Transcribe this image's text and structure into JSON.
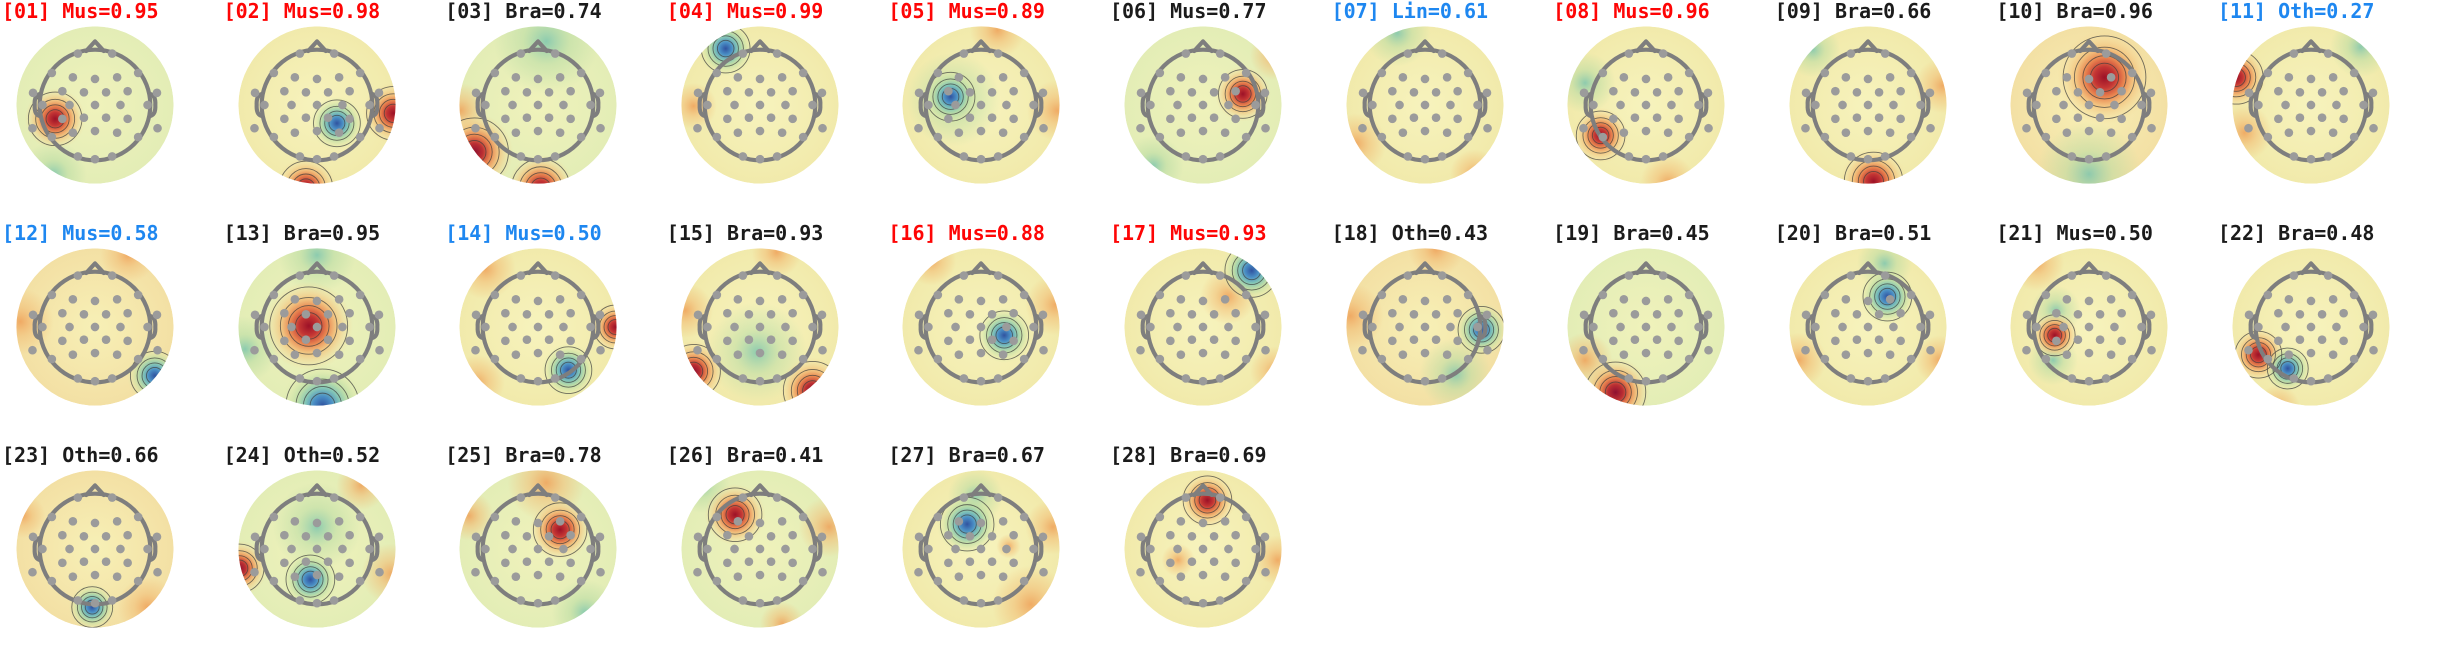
{
  "figure": {
    "name": "EEG ICA component topomap grid",
    "background": "#ffffff",
    "columns": 11,
    "rows": 3,
    "title_colors": {
      "red": "#fe0505",
      "blue": "#1e87f0",
      "black": "#1b1b1b"
    }
  },
  "chart_data": {
    "type": "heatmap",
    "subtype": "eeg-ica-component-topomaps",
    "colormap": "red=positive, yellow=neutral, blue/teal=negative",
    "head_outline_color": "#7e7e7e",
    "electrode_dot_color": "#9b9b9b",
    "contour_color": "#3b3b3b",
    "base_palettes": {
      "yellow": [
        "#f7f3bd",
        "#f1eaab"
      ],
      "green": [
        "#f0f2bb",
        "#e3edb6"
      ],
      "warm": [
        "#f7f0b6",
        "#f3e0a4"
      ]
    },
    "electrodes": [
      [
        -0.31,
        0.93
      ],
      [
        0.31,
        0.93
      ],
      [
        -0.78,
        0.58
      ],
      [
        -0.4,
        0.5
      ],
      [
        0,
        0.47
      ],
      [
        0.4,
        0.5
      ],
      [
        0.78,
        0.58
      ],
      [
        -1.12,
        0.22
      ],
      [
        1.12,
        0.22
      ],
      [
        -0.59,
        0.25
      ],
      [
        -0.2,
        0.23
      ],
      [
        0.2,
        0.23
      ],
      [
        0.59,
        0.25
      ],
      [
        -0.95,
        0
      ],
      [
        -0.46,
        0
      ],
      [
        0,
        0
      ],
      [
        0.46,
        0
      ],
      [
        0.95,
        0
      ],
      [
        -1.13,
        -0.42
      ],
      [
        1.13,
        -0.42
      ],
      [
        -0.59,
        -0.25
      ],
      [
        -0.2,
        -0.23
      ],
      [
        0.2,
        -0.23
      ],
      [
        0.59,
        -0.25
      ],
      [
        -0.78,
        -0.58
      ],
      [
        -0.4,
        -0.5
      ],
      [
        0,
        -0.47
      ],
      [
        0.4,
        -0.5
      ],
      [
        0.78,
        -0.58
      ],
      [
        -0.31,
        -0.93
      ],
      [
        0,
        -0.98
      ],
      [
        0.31,
        -0.93
      ]
    ],
    "components": [
      {
        "num": "01",
        "cls": "Mus",
        "prob": "0.95",
        "title": "[01] Mus=0.95",
        "label_color": "red",
        "base": "green",
        "blobs": [
          [
            "red",
            -0.72,
            -0.25,
            0.55
          ],
          [
            "teal",
            -0.75,
            -1.25,
            0.6
          ]
        ]
      },
      {
        "num": "02",
        "cls": "Mus",
        "prob": "0.98",
        "title": "[02] Mus=0.98",
        "label_color": "red",
        "base": "yellow",
        "blobs": [
          [
            "blue",
            0.36,
            -0.33,
            0.48
          ],
          [
            "red",
            1.38,
            -0.15,
            0.55
          ],
          [
            "red",
            -0.2,
            -1.5,
            0.55
          ]
        ]
      },
      {
        "num": "03",
        "cls": "Bra",
        "prob": "0.74",
        "title": "[03] Bra=0.74",
        "label_color": "black",
        "base": "green",
        "blobs": [
          [
            "teal",
            0.15,
            1.15,
            0.95
          ],
          [
            "crimson",
            -1.15,
            -0.85,
            0.7
          ],
          [
            "red",
            0.05,
            -1.5,
            0.6
          ],
          [
            "orange",
            -1.4,
            -0.1,
            0.5
          ]
        ]
      },
      {
        "num": "04",
        "cls": "Mus",
        "prob": "0.99",
        "title": "[04] Mus=0.99",
        "label_color": "red",
        "base": "yellow",
        "blobs": [
          [
            "blue",
            -0.62,
            1.02,
            0.5
          ],
          [
            "orange",
            -1.2,
            -0.02,
            0.42
          ]
        ]
      },
      {
        "num": "05",
        "cls": "Mus",
        "prob": "0.89",
        "title": "[05] Mus=0.89",
        "label_color": "red",
        "base": "yellow",
        "blobs": [
          [
            "teal",
            -0.5,
            0.1,
            0.85
          ],
          [
            "blue",
            -0.55,
            0.15,
            0.5
          ],
          [
            "orange",
            1.38,
            -0.1,
            0.55
          ],
          [
            "orange",
            0.3,
            1.35,
            0.5
          ]
        ]
      },
      {
        "num": "06",
        "cls": "Mus",
        "prob": "0.77",
        "title": "[06] Mus=0.77",
        "label_color": "black",
        "base": "green",
        "blobs": [
          [
            "red",
            0.72,
            0.2,
            0.5
          ],
          [
            "orange",
            1.3,
            0.9,
            0.45
          ],
          [
            "teal",
            -0.9,
            -1.1,
            0.55
          ]
        ]
      },
      {
        "num": "07",
        "cls": "Lin",
        "prob": "0.61",
        "title": "[07] Lin=0.61",
        "label_color": "blue",
        "base": "yellow",
        "blobs": [
          [
            "teal",
            -0.5,
            1.3,
            0.6
          ],
          [
            "orange",
            -1.25,
            -0.7,
            0.55
          ],
          [
            "orange",
            0.9,
            -1.25,
            0.45
          ]
        ]
      },
      {
        "num": "08",
        "cls": "Mus",
        "prob": "0.96",
        "title": "[08] Mus=0.96",
        "label_color": "red",
        "base": "yellow",
        "blobs": [
          [
            "red",
            -0.82,
            -0.55,
            0.5
          ],
          [
            "teal",
            -1.1,
            0.4,
            0.55
          ],
          [
            "orange",
            0.4,
            -1.4,
            0.5
          ]
        ]
      },
      {
        "num": "09",
        "cls": "Bra",
        "prob": "0.66",
        "title": "[09] Bra=0.66",
        "label_color": "black",
        "base": "yellow",
        "blobs": [
          [
            "red",
            0.1,
            -1.38,
            0.6
          ],
          [
            "orange",
            1.35,
            0.35,
            0.5
          ],
          [
            "teal",
            -1.0,
            1.0,
            0.5
          ]
        ]
      },
      {
        "num": "10",
        "cls": "Bra",
        "prob": "0.96",
        "title": "[10] Bra=0.96",
        "label_color": "black",
        "base": "warm",
        "blobs": [
          [
            "red",
            0.28,
            0.5,
            0.85
          ],
          [
            "teal",
            0.0,
            -1.25,
            0.95
          ]
        ]
      },
      {
        "num": "11",
        "cls": "Oth",
        "prob": "0.27",
        "title": "[11] Oth=0.27",
        "label_color": "blue",
        "base": "yellow",
        "blobs": [
          [
            "red",
            -1.35,
            0.5,
            0.55
          ],
          [
            "teal",
            0.9,
            1.05,
            0.55
          ],
          [
            "orange",
            -1.2,
            -0.5,
            0.5
          ]
        ]
      },
      {
        "num": "12",
        "cls": "Mus",
        "prob": "0.58",
        "title": "[12] Mus=0.58",
        "label_color": "blue",
        "base": "warm",
        "blobs": [
          [
            "blue",
            1.08,
            -0.88,
            0.5
          ],
          [
            "orange",
            -1.35,
            0.1,
            0.6
          ],
          [
            "orange",
            0.6,
            1.3,
            0.5
          ]
        ]
      },
      {
        "num": "13",
        "cls": "Bra",
        "prob": "0.95",
        "title": "[13] Bra=0.95",
        "label_color": "black",
        "base": "green",
        "blobs": [
          [
            "red",
            -0.15,
            0.02,
            0.8
          ],
          [
            "blue",
            0.1,
            -1.42,
            0.75
          ],
          [
            "teal",
            0.0,
            1.3,
            0.7
          ],
          [
            "teal",
            -1.3,
            -0.4,
            0.6
          ]
        ]
      },
      {
        "num": "14",
        "cls": "Mus",
        "prob": "0.50",
        "title": "[14] Mus=0.50",
        "label_color": "blue",
        "base": "yellow",
        "blobs": [
          [
            "blue",
            0.55,
            -0.78,
            0.48
          ],
          [
            "red",
            1.4,
            0.0,
            0.45
          ],
          [
            "orange",
            -0.95,
            1.05,
            0.55
          ],
          [
            "orange",
            -1.1,
            -1.0,
            0.5
          ]
        ]
      },
      {
        "num": "15",
        "cls": "Bra",
        "prob": "0.93",
        "title": "[15] Bra=0.93",
        "label_color": "black",
        "base": "yellow",
        "blobs": [
          [
            "teal",
            -0.05,
            -0.45,
            0.9
          ],
          [
            "crimson",
            0.95,
            -1.15,
            0.6
          ],
          [
            "crimson",
            -1.2,
            -0.8,
            0.55
          ],
          [
            "orange",
            -1.35,
            0.3,
            0.5
          ],
          [
            "orange",
            0.3,
            1.35,
            0.45
          ]
        ]
      },
      {
        "num": "16",
        "cls": "Mus",
        "prob": "0.88",
        "title": "[16] Mus=0.88",
        "label_color": "red",
        "base": "yellow",
        "blobs": [
          [
            "blue",
            0.42,
            -0.15,
            0.5
          ],
          [
            "orange",
            1.35,
            0.4,
            0.55
          ],
          [
            "orange",
            -0.9,
            1.2,
            0.45
          ]
        ]
      },
      {
        "num": "17",
        "cls": "Mus",
        "prob": "0.93",
        "title": "[17] Mus=0.93",
        "label_color": "red",
        "base": "yellow",
        "blobs": [
          [
            "blue",
            0.88,
            1.02,
            0.55
          ],
          [
            "orange",
            0.45,
            0.55,
            0.5
          ],
          [
            "orange",
            1.3,
            -0.8,
            0.45
          ]
        ]
      },
      {
        "num": "18",
        "cls": "Oth",
        "prob": "0.43",
        "title": "[18] Oth=0.43",
        "label_color": "black",
        "base": "warm",
        "blobs": [
          [
            "blue",
            1.02,
            -0.05,
            0.48
          ],
          [
            "teal",
            0.55,
            -0.85,
            0.65
          ],
          [
            "orange",
            -1.35,
            0.2,
            0.6
          ],
          [
            "orange",
            0.2,
            1.4,
            0.5
          ]
        ]
      },
      {
        "num": "19",
        "cls": "Bra",
        "prob": "0.45",
        "title": "[19] Bra=0.45",
        "label_color": "black",
        "base": "green",
        "blobs": [
          [
            "crimson",
            -0.55,
            -1.18,
            0.62
          ],
          [
            "orange",
            -1.1,
            -0.6,
            0.5
          ]
        ]
      },
      {
        "num": "20",
        "cls": "Bra",
        "prob": "0.51",
        "title": "[20] Bra=0.51",
        "label_color": "black",
        "base": "yellow",
        "blobs": [
          [
            "blue",
            0.35,
            0.55,
            0.5
          ],
          [
            "teal",
            0.3,
            1.15,
            0.5
          ],
          [
            "orange",
            -1.25,
            -0.6,
            0.5
          ],
          [
            "orange",
            1.3,
            -0.6,
            0.45
          ]
        ]
      },
      {
        "num": "21",
        "cls": "Mus",
        "prob": "0.50",
        "title": "[21] Mus=0.50",
        "label_color": "black",
        "base": "yellow",
        "blobs": [
          [
            "teal",
            -0.6,
            0.3,
            0.45
          ],
          [
            "teal",
            -0.65,
            -0.6,
            0.45
          ],
          [
            "red",
            -0.62,
            -0.15,
            0.42
          ],
          [
            "orange",
            -0.95,
            1.15,
            0.5
          ]
        ]
      },
      {
        "num": "22",
        "cls": "Bra",
        "prob": "0.48",
        "title": "[22] Bra=0.48",
        "label_color": "black",
        "base": "yellow",
        "blobs": [
          [
            "red",
            -0.95,
            -0.5,
            0.48
          ],
          [
            "blue",
            -0.42,
            -0.75,
            0.42
          ],
          [
            "orange",
            -0.6,
            -1.45,
            0.4
          ]
        ]
      },
      {
        "num": "23",
        "cls": "Oth",
        "prob": "0.66",
        "title": "[23] Oth=0.66",
        "label_color": "black",
        "base": "warm",
        "blobs": [
          [
            "blue",
            -0.05,
            -1.05,
            0.42
          ],
          [
            "orange",
            0.95,
            -1.05,
            0.55
          ],
          [
            "orange",
            -1.3,
            0.6,
            0.4
          ]
        ]
      },
      {
        "num": "24",
        "cls": "Oth",
        "prob": "0.52",
        "title": "[24] Oth=0.52",
        "label_color": "black",
        "base": "green",
        "blobs": [
          [
            "teal",
            0.0,
            0.4,
            0.8
          ],
          [
            "blue",
            -0.12,
            -0.55,
            0.5
          ],
          [
            "crimson",
            -1.4,
            -0.35,
            0.5
          ],
          [
            "orange",
            1.35,
            -0.45,
            0.55
          ],
          [
            "orange",
            0.8,
            1.15,
            0.45
          ]
        ]
      },
      {
        "num": "25",
        "cls": "Bra",
        "prob": "0.78",
        "title": "[25] Bra=0.78",
        "label_color": "black",
        "base": "green",
        "blobs": [
          [
            "red",
            0.4,
            0.35,
            0.55
          ],
          [
            "orange",
            0.15,
            1.2,
            0.7
          ],
          [
            "teal",
            0.85,
            -1.15,
            0.6
          ],
          [
            "orange",
            -1.25,
            0.6,
            0.45
          ]
        ]
      },
      {
        "num": "26",
        "cls": "Bra",
        "prob": "0.41",
        "title": "[26] Bra=0.41",
        "label_color": "black",
        "base": "green",
        "blobs": [
          [
            "red",
            -0.45,
            0.62,
            0.55
          ],
          [
            "teal",
            -1.05,
            1.15,
            0.5
          ],
          [
            "orange",
            1.25,
            0.4,
            0.55
          ],
          [
            "orange",
            0.4,
            -1.35,
            0.4
          ]
        ]
      },
      {
        "num": "27",
        "cls": "Bra",
        "prob": "0.67",
        "title": "[27] Bra=0.67",
        "label_color": "black",
        "base": "yellow",
        "blobs": [
          [
            "blue",
            -0.25,
            0.45,
            0.55
          ],
          [
            "teal",
            -0.1,
            0.95,
            0.5
          ],
          [
            "orange",
            0.9,
            -1.0,
            0.7
          ],
          [
            "orange",
            1.3,
            0.4,
            0.5
          ],
          [
            "orange",
            0.5,
            0.05,
            0.22
          ]
        ]
      },
      {
        "num": "28",
        "cls": "Bra",
        "prob": "0.69",
        "title": "[28] Bra=0.69",
        "label_color": "black",
        "base": "yellow",
        "blobs": [
          [
            "red",
            0.08,
            0.88,
            0.5
          ],
          [
            "orange",
            1.35,
            -0.2,
            0.45
          ],
          [
            "orange",
            -0.45,
            -0.2,
            0.3
          ]
        ]
      }
    ]
  }
}
